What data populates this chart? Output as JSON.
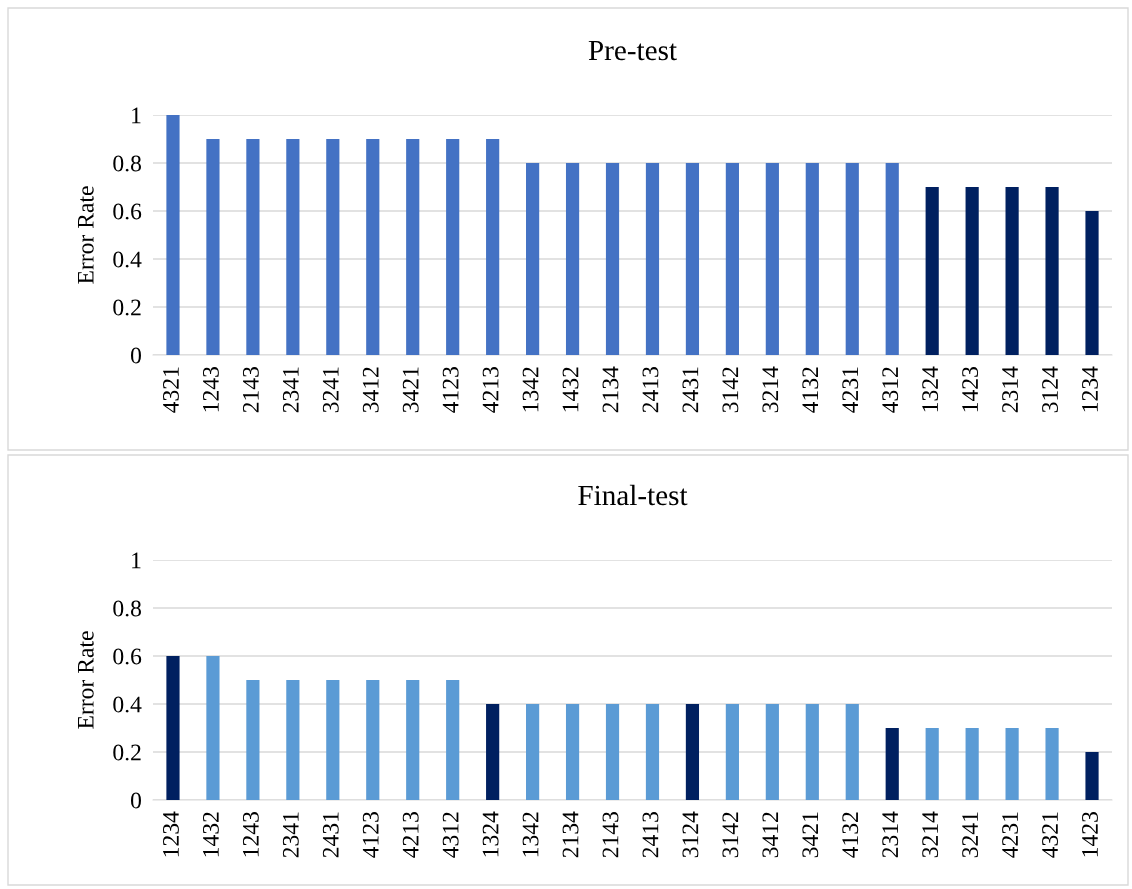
{
  "chart_data": [
    {
      "type": "bar",
      "title": "Pre-test",
      "ylabel": "Error Rate",
      "categories": [
        "4321",
        "1243",
        "2143",
        "2341",
        "3241",
        "3412",
        "3421",
        "4123",
        "4213",
        "1342",
        "1432",
        "2134",
        "2413",
        "2431",
        "3142",
        "3214",
        "4132",
        "4231",
        "4312",
        "1324",
        "1423",
        "2314",
        "3124",
        "1234"
      ],
      "values": [
        1,
        0.9,
        0.9,
        0.9,
        0.9,
        0.9,
        0.9,
        0.9,
        0.9,
        0.8,
        0.8,
        0.8,
        0.8,
        0.8,
        0.8,
        0.8,
        0.8,
        0.8,
        0.8,
        0.7,
        0.7,
        0.7,
        0.7,
        0.6
      ],
      "colors": [
        "#4472c4",
        "#4472c4",
        "#4472c4",
        "#4472c4",
        "#4472c4",
        "#4472c4",
        "#4472c4",
        "#4472c4",
        "#4472c4",
        "#4472c4",
        "#4472c4",
        "#4472c4",
        "#4472c4",
        "#4472c4",
        "#4472c4",
        "#4472c4",
        "#4472c4",
        "#4472c4",
        "#4472c4",
        "#002060",
        "#002060",
        "#002060",
        "#002060",
        "#002060"
      ],
      "ylim": [
        0,
        1
      ],
      "yticks": [
        0,
        0.2,
        0.4,
        0.6,
        0.8,
        1
      ],
      "grid": "y"
    },
    {
      "type": "bar",
      "title": "Final-test",
      "ylabel": "Error Rate",
      "categories": [
        "1234",
        "1432",
        "1243",
        "2341",
        "2431",
        "4123",
        "4213",
        "4312",
        "1324",
        "1342",
        "2134",
        "2143",
        "2413",
        "3124",
        "3142",
        "3412",
        "3421",
        "4132",
        "2314",
        "3214",
        "3241",
        "4231",
        "4321",
        "1423"
      ],
      "values": [
        0.6,
        0.6,
        0.5,
        0.5,
        0.5,
        0.5,
        0.5,
        0.5,
        0.4,
        0.4,
        0.4,
        0.4,
        0.4,
        0.4,
        0.4,
        0.4,
        0.4,
        0.4,
        0.3,
        0.3,
        0.3,
        0.3,
        0.3,
        0.2
      ],
      "colors": [
        "#002060",
        "#5b9bd5",
        "#5b9bd5",
        "#5b9bd5",
        "#5b9bd5",
        "#5b9bd5",
        "#5b9bd5",
        "#5b9bd5",
        "#002060",
        "#5b9bd5",
        "#5b9bd5",
        "#5b9bd5",
        "#5b9bd5",
        "#002060",
        "#5b9bd5",
        "#5b9bd5",
        "#5b9bd5",
        "#5b9bd5",
        "#002060",
        "#5b9bd5",
        "#5b9bd5",
        "#5b9bd5",
        "#5b9bd5",
        "#002060"
      ],
      "ylim": [
        0,
        1
      ],
      "yticks": [
        0,
        0.2,
        0.4,
        0.6,
        0.8,
        1
      ],
      "grid": "y"
    }
  ]
}
